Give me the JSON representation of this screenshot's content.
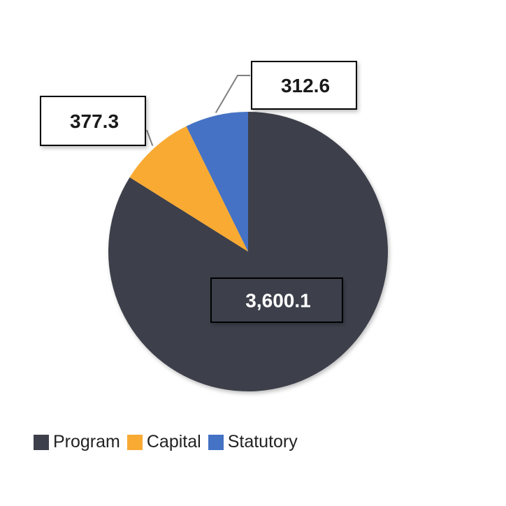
{
  "chart_data": {
    "type": "pie",
    "title": "",
    "categories": [
      "Program",
      "Capital",
      "Statutory"
    ],
    "values": [
      3600.1,
      377.3,
      312.6
    ],
    "data_labels": [
      "3,600.1",
      "377.3",
      "312.6"
    ],
    "colors": [
      "#3d404b",
      "#f8aa33",
      "#4472c4"
    ],
    "start": "12 o'clock",
    "direction": "clockwise",
    "legend_position": "bottom-left"
  }
}
